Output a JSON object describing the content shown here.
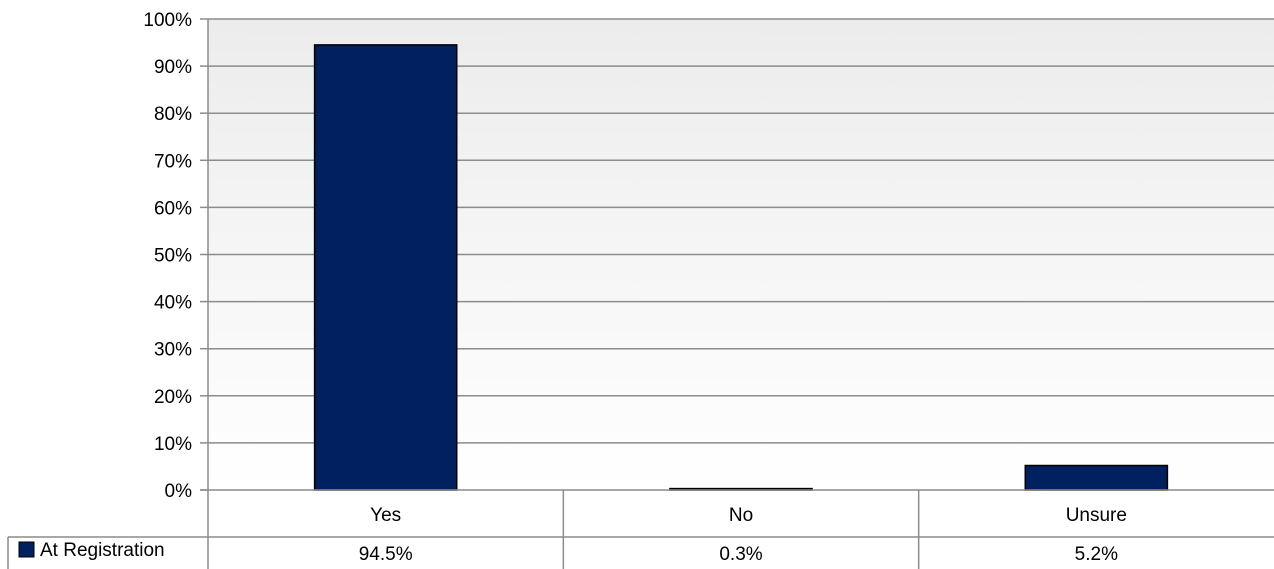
{
  "chart_data": {
    "type": "bar",
    "categories": [
      "Yes",
      "No",
      "Unsure"
    ],
    "series": [
      {
        "name": "At Registration",
        "values": [
          94.5,
          0.3,
          5.2
        ],
        "value_labels": [
          "94.5%",
          "0.3%",
          "5.2%"
        ],
        "color": "#002060"
      }
    ],
    "ylim": [
      0,
      100
    ],
    "yticks": [
      0,
      10,
      20,
      30,
      40,
      50,
      60,
      70,
      80,
      90,
      100
    ],
    "ytick_labels": [
      "0%",
      "10%",
      "20%",
      "30%",
      "40%",
      "50%",
      "60%",
      "70%",
      "80%",
      "90%",
      "100%"
    ],
    "grid": true,
    "legend": "data-table-left",
    "data_table": true
  }
}
